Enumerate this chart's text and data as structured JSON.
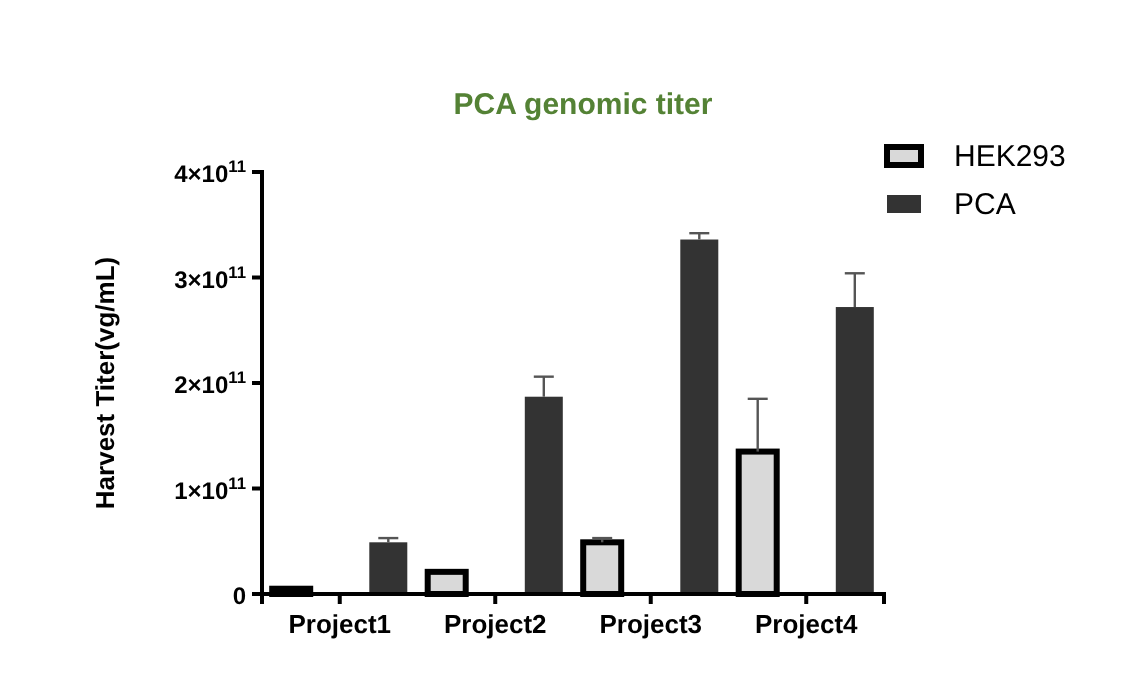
{
  "chart_data": {
    "type": "bar",
    "title": "PCA genomic titer",
    "ylabel": "Harvest Titer(vg/mL)",
    "categories": [
      "Project1",
      "Project2",
      "Project3",
      "Project4"
    ],
    "series": [
      {
        "name": "HEK293",
        "color": "#d9d9d9",
        "values": [
          5000000000.0,
          21000000000.0,
          49000000000.0,
          135000000000.0
        ],
        "errors": [
          null,
          null,
          [
            49000000000.0,
            53000000000.0
          ],
          [
            135000000000.0,
            185000000000.0
          ]
        ]
      },
      {
        "name": "PCA",
        "color": "#333333",
        "values": [
          49000000000.0,
          187000000000.0,
          336000000000.0,
          272000000000.0
        ],
        "errors": [
          [
            49000000000.0,
            53000000000.0
          ],
          [
            187000000000.0,
            206000000000.0
          ],
          [
            336000000000.0,
            342000000000.0
          ],
          [
            272000000000.0,
            304000000000.0
          ]
        ]
      }
    ],
    "ylim": [
      0,
      400000000000.0
    ],
    "yticks": [
      0,
      {
        "value": 100000000000.0,
        "label": "1×10$^{11}$"
      },
      {
        "value": 200000000000.0,
        "label": "2×10$^{11}$"
      },
      {
        "value": 300000000000.0,
        "label": "3×10$^{11}$"
      },
      {
        "value": 400000000000.0,
        "label": "4×10$^{11}$"
      }
    ],
    "grid": false,
    "legend": "top right"
  }
}
